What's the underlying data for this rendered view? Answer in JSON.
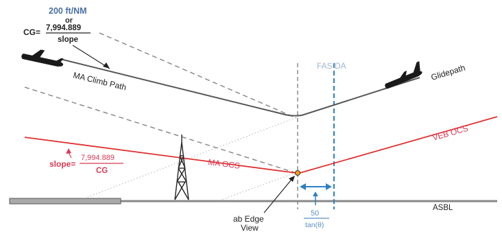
{
  "colors": {
    "black": "#1a1a1a",
    "gray_line": "#888888",
    "gray_dash": "#8a8a8a",
    "red": "#e03030",
    "pink_text": "#d83a55",
    "blue": "#2f80c0",
    "blue_text": "#5b8fc4",
    "light_blue_text": "#9fb6cc",
    "ground_fill": "#a9a9a9",
    "dot": "#f0a020"
  },
  "cg_formula": {
    "numerator_top": "200 ft/NM",
    "or": "or",
    "label": "CG=",
    "numerator": "7,994.889",
    "denominator": "slope"
  },
  "labels": {
    "ma_climb_path": "MA Climb Path",
    "glidepath": "Glidepath",
    "fas_da": "FAS DA",
    "veb_ocs": "VEB OCS",
    "ma_ocs": "MA OCS",
    "asbl": "ASBL",
    "slope_label": "slope=",
    "slope_num": "7,994.889",
    "slope_den": "CG",
    "edge_view": [
      "ab Edge",
      "View"
    ],
    "dim_num": "50",
    "dim_den": "tan(θ)"
  }
}
